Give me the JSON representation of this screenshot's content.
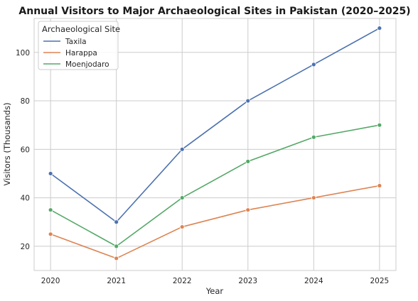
{
  "chart_data": {
    "type": "line",
    "title": "Annual Visitors to Major Archaeological Sites in Pakistan (2020–2025)",
    "xlabel": "Year",
    "ylabel": "Visitors (Thousands)",
    "x": [
      2020,
      2021,
      2022,
      2023,
      2024,
      2025
    ],
    "x_tick_labels": [
      "2020",
      "2021",
      "2022",
      "2023",
      "2024",
      "2025"
    ],
    "xlim": [
      2019.75,
      2025.25
    ],
    "ylim": [
      10,
      114
    ],
    "y_ticks": [
      20,
      40,
      60,
      80,
      100
    ],
    "y_tick_labels": [
      "20",
      "40",
      "60",
      "80",
      "100"
    ],
    "grid": true,
    "markers": true,
    "legend": {
      "title": "Archaeological Site",
      "placement": "top-left"
    },
    "series": [
      {
        "name": "Taxila",
        "color": "#4c72b0",
        "values": [
          50,
          30,
          60,
          80,
          95,
          110
        ]
      },
      {
        "name": "Harappa",
        "color": "#dd8452",
        "values": [
          25,
          15,
          28,
          35,
          40,
          45
        ]
      },
      {
        "name": "Moenjodaro",
        "color": "#55a868",
        "values": [
          35,
          20,
          40,
          55,
          65,
          70
        ]
      }
    ]
  }
}
